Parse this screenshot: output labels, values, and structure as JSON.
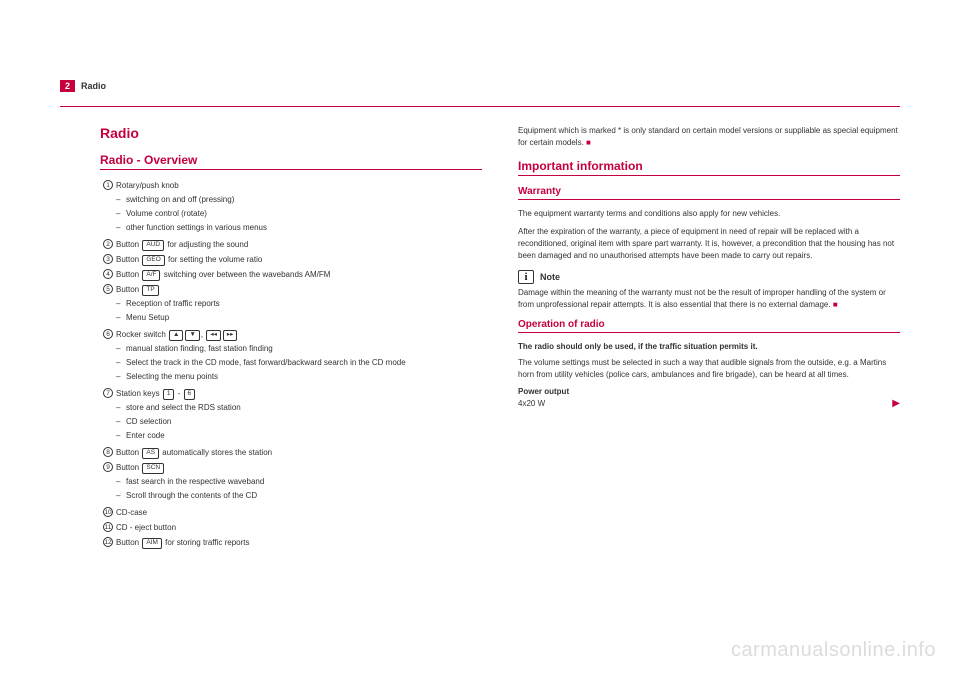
{
  "header": {
    "page_num": "2",
    "section": "Radio"
  },
  "left": {
    "h1": "Radio",
    "h2": "Radio - Overview",
    "items": [
      {
        "num": "1",
        "text": "Rotary/push knob",
        "sub": [
          "switching on and off (pressing)",
          "Volume control (rotate)",
          "other function settings in various menus"
        ]
      },
      {
        "num": "2",
        "pre": "Button ",
        "key": "AUD",
        "post": " for adjusting the sound"
      },
      {
        "num": "3",
        "pre": "Button ",
        "key": "GEO",
        "post": " for setting the volume ratio"
      },
      {
        "num": "4",
        "pre": "Button ",
        "key": "A/F",
        "post": " switching over between the wavebands AM/FM"
      },
      {
        "num": "5",
        "pre": "Button ",
        "key": "TP",
        "post": "",
        "sub": [
          "Reception of traffic reports",
          "Menu Setup"
        ]
      },
      {
        "num": "6",
        "pre": "Rocker switch ",
        "keys": [
          "▲",
          "▼",
          ",",
          "◂◂",
          "▸▸"
        ],
        "post": "",
        "sub": [
          "manual station finding, fast station finding",
          "Select the track in the CD mode, fast forward/backward search in the CD mode",
          "Selecting the menu points"
        ]
      },
      {
        "num": "7",
        "pre": "Station keys ",
        "key": "1",
        "mid": " - ",
        "key2": "6",
        "post": "",
        "sub": [
          "store and select the RDS station",
          "CD selection",
          "Enter code"
        ]
      },
      {
        "num": "8",
        "pre": "Button ",
        "key": "AS",
        "post": " automatically stores the station"
      },
      {
        "num": "9",
        "pre": "Button ",
        "key": "SCN",
        "post": "",
        "sub": [
          "fast search in the respective waveband",
          "Scroll through the contents of the CD"
        ]
      },
      {
        "num": "10",
        "text": "CD-case"
      },
      {
        "num": "11",
        "text": "CD - eject button"
      },
      {
        "num": "12",
        "pre": "Button ",
        "key": "AIM",
        "post": " for storing traffic reports"
      }
    ]
  },
  "right": {
    "intro": "Equipment which is marked * is only standard on certain model versions or suppliable as special equipment for certain models.",
    "h2": "Important information",
    "warranty": {
      "title": "Warranty",
      "p1": "The equipment warranty terms and conditions also apply for new vehicles.",
      "p2": "After the expiration of the warranty, a piece of equipment in need of repair will be replaced with a reconditioned, original item with spare part warranty. It is, however, a precondition that the housing has not been damaged and no unauthorised attempts have been made to carry out repairs."
    },
    "note": {
      "label": "Note",
      "text": "Damage within the meaning of the warranty must not be the result of improper handling of the system or from unprofessional repair attempts. It is also essential that there is no external damage."
    },
    "operation": {
      "title": "Operation of radio",
      "bold": "The radio should only be used, if the traffic situation permits it.",
      "p1": "The volume settings must be selected in such a way that audible signals from the outside, e.g. a Martins horn from utility vehicles (police cars, ambulances and fire brigade), can be heard at all times.",
      "power_label": "Power output",
      "power_value": "4x20 W"
    }
  },
  "watermark": "carmanualsonline.info"
}
